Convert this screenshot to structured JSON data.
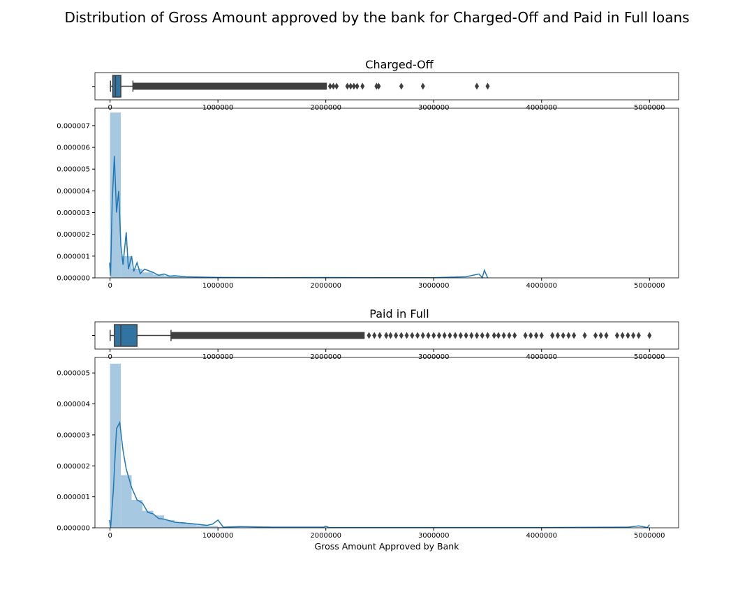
{
  "figure": {
    "suptitle": "Distribution of Gross Amount approved by the bank for Charged-Off and Paid in Full loans",
    "xlabel": "Gross Amount Approved by Bank"
  },
  "colors": {
    "box_fill": "#3274a1",
    "box_edge": "#3f3f3f",
    "hist_fill": "#a6c8e1",
    "kde_line": "#1f77b4",
    "axis": "#000000"
  },
  "chart_data": [
    {
      "type": "box",
      "title": "Charged-Off",
      "xlim": [
        -140000,
        5270000
      ],
      "xticks": [
        0,
        1000000,
        2000000,
        3000000,
        4000000,
        5000000
      ],
      "whisker_low": 4000,
      "q1": 25000,
      "median": 50000,
      "q3": 100000,
      "whisker_high": 212000,
      "outlier_band": [
        212000,
        2010000
      ],
      "outliers": [
        2040000,
        2070000,
        2100000,
        2200000,
        2230000,
        2260000,
        2290000,
        2340000,
        2470000,
        2490000,
        2700000,
        2900000,
        3400000,
        3500000
      ]
    },
    {
      "type": "hist+kde",
      "xlim": [
        -140000,
        5270000
      ],
      "ylim": [
        0,
        7.8e-06
      ],
      "xticks": [
        0,
        1000000,
        2000000,
        3000000,
        4000000,
        5000000
      ],
      "yticks": [
        0,
        1e-06,
        2e-06,
        3e-06,
        4e-06,
        5e-06,
        6e-06,
        7e-06
      ],
      "ytick_labels": [
        "0.000000",
        "0.000001",
        "0.000002",
        "0.000003",
        "0.000004",
        "0.000005",
        "0.000006",
        "0.000007"
      ],
      "bin_edges": [
        0,
        100000,
        200000,
        300000,
        400000,
        500000,
        600000,
        700000,
        800000,
        900000,
        1000000,
        1200000,
        1500000,
        2000000,
        3400000,
        3500000
      ],
      "densities": [
        7.6e-06,
        1e-06,
        4.2e-07,
        2.5e-07,
        1.5e-07,
        9e-08,
        6e-08,
        4e-08,
        3e-08,
        2e-08,
        1.5e-08,
        1e-08,
        5e-09,
        3e-09,
        2e-08
      ],
      "kde_x": [
        -5000,
        5000,
        20000,
        40000,
        60000,
        80000,
        100000,
        120000,
        150000,
        170000,
        200000,
        220000,
        250000,
        280000,
        320000,
        400000,
        450000,
        500000,
        550000,
        600000,
        700000,
        800000,
        1000000,
        1500000,
        2000000,
        2500000,
        3000000,
        3300000,
        3420000,
        3450000,
        3470000,
        3500000
      ],
      "kde_y": [
        7e-07,
        1e-07,
        3.5e-06,
        5.6e-06,
        3e-06,
        4e-06,
        1.5e-06,
        6e-07,
        2.1e-06,
        4e-07,
        1e-06,
        3e-07,
        7e-07,
        2e-07,
        4e-07,
        2.5e-07,
        1.2e-07,
        1.8e-07,
        8e-08,
        1e-07,
        5e-08,
        4e-08,
        2e-08,
        1e-08,
        1.5e-08,
        1e-08,
        1e-08,
        5e-08,
        1.8e-07,
        1e-08,
        3.5e-07,
        0.0
      ]
    },
    {
      "type": "box",
      "title": "Paid in Full",
      "xlim": [
        -140000,
        5270000
      ],
      "xticks": [
        0,
        1000000,
        2000000,
        3000000,
        4000000,
        5000000
      ],
      "whisker_low": 1000,
      "q1": 40000,
      "median": 100000,
      "q3": 250000,
      "whisker_high": 565000,
      "outlier_band": [
        565000,
        2360000
      ],
      "outliers": [
        2400000,
        2450000,
        2500000,
        2560000,
        2600000,
        2650000,
        2700000,
        2750000,
        2800000,
        2850000,
        2900000,
        2950000,
        3000000,
        3050000,
        3100000,
        3150000,
        3200000,
        3250000,
        3300000,
        3350000,
        3400000,
        3450000,
        3500000,
        3560000,
        3600000,
        3650000,
        3700000,
        3750000,
        3850000,
        3900000,
        3950000,
        4000000,
        4100000,
        4150000,
        4200000,
        4250000,
        4300000,
        4400000,
        4500000,
        4550000,
        4600000,
        4700000,
        4750000,
        4800000,
        4850000,
        4900000,
        5000000
      ]
    },
    {
      "type": "hist+kde",
      "xlim": [
        -140000,
        5270000
      ],
      "ylim": [
        0,
        5.5e-06
      ],
      "xticks": [
        0,
        1000000,
        2000000,
        3000000,
        4000000,
        5000000
      ],
      "yticks": [
        0,
        1e-06,
        2e-06,
        3e-06,
        4e-06,
        5e-06
      ],
      "ytick_labels": [
        "0.000000",
        "0.000001",
        "0.000002",
        "0.000003",
        "0.000004",
        "0.000005"
      ],
      "bin_edges": [
        0,
        100000,
        200000,
        300000,
        400000,
        500000,
        600000,
        700000,
        800000,
        900000,
        1000000,
        1200000,
        1500000,
        2000000,
        5000000
      ],
      "densities": [
        5.3e-06,
        1.7e-06,
        9e-07,
        5.5e-07,
        4e-07,
        2.5e-07,
        1.8e-07,
        1.2e-07,
        8e-08,
        6e-08,
        3e-08,
        1.5e-08,
        8e-09,
        4e-09
      ],
      "kde_x": [
        -5000,
        5000,
        30000,
        60000,
        90000,
        120000,
        150000,
        200000,
        250000,
        300000,
        350000,
        400000,
        450000,
        500000,
        600000,
        700000,
        800000,
        900000,
        950000,
        1000000,
        1050000,
        1200000,
        1500000,
        1980000,
        2000000,
        2030000,
        2500000,
        3000000,
        4000000,
        4800000,
        4900000,
        4980000,
        5000000
      ],
      "kde_y": [
        2.5e-07,
        0.0,
        1.2e-06,
        3.2e-06,
        3.4e-06,
        2.5e-06,
        1.9e-06,
        1.3e-06,
        9e-07,
        8e-07,
        5e-07,
        4.5e-07,
        3e-07,
        2.8e-07,
        1.8e-07,
        1.5e-07,
        1.2e-07,
        8e-08,
        1.2e-07,
        2.5e-07,
        2e-08,
        4e-08,
        2e-08,
        2e-08,
        5e-08,
        1e-08,
        1e-08,
        1e-08,
        1e-08,
        2e-08,
        6e-08,
        1e-08,
        1e-07
      ]
    }
  ]
}
